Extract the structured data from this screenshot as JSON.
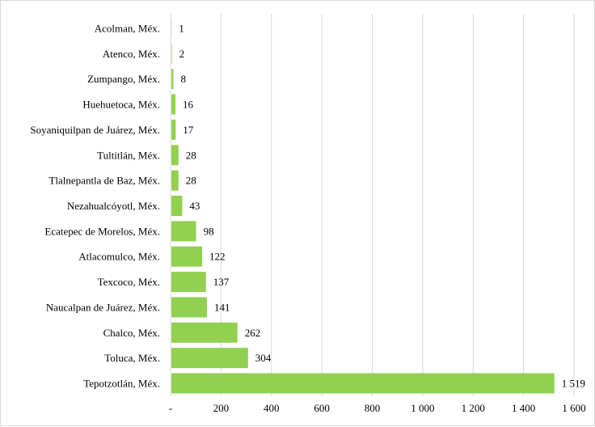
{
  "chart_data": {
    "type": "bar",
    "orientation": "horizontal",
    "categories": [
      "Acolman, Méx.",
      "Atenco, Méx.",
      "Zumpango, Méx.",
      "Huehuetoca, Méx.",
      "Soyaniquilpan de Juárez, Méx.",
      "Tultitlán, Méx.",
      "Tlalnepantla de Baz, Méx.",
      "Nezahualcóyotl, Méx.",
      "Ecatepec de Morelos, Méx.",
      "Atlacomulco, Méx.",
      "Texcoco, Méx.",
      "Naucalpan de Juárez, Méx.",
      "Chalco, Méx.",
      "Toluca, Méx.",
      "Tepotzotlán, Méx."
    ],
    "values": [
      1,
      2,
      8,
      16,
      17,
      28,
      28,
      43,
      98,
      122,
      137,
      141,
      262,
      304,
      1519
    ],
    "value_labels": [
      "1",
      "2",
      "8",
      "16",
      "17",
      "28",
      "28",
      "43",
      "98",
      "122",
      "137",
      "141",
      "262",
      "304",
      "1 519"
    ],
    "xlim": [
      0,
      1600
    ],
    "x_ticks": [
      0,
      200,
      400,
      600,
      800,
      1000,
      1200,
      1400,
      1600
    ],
    "x_tick_labels": [
      "-",
      "200",
      "400",
      "600",
      "800",
      "1 000",
      "1 200",
      "1 400",
      "1 600"
    ],
    "grid": true,
    "bar_color": "#92d050",
    "gridline_color": "#d9d9d9",
    "title": "",
    "xlabel": "",
    "ylabel": ""
  }
}
